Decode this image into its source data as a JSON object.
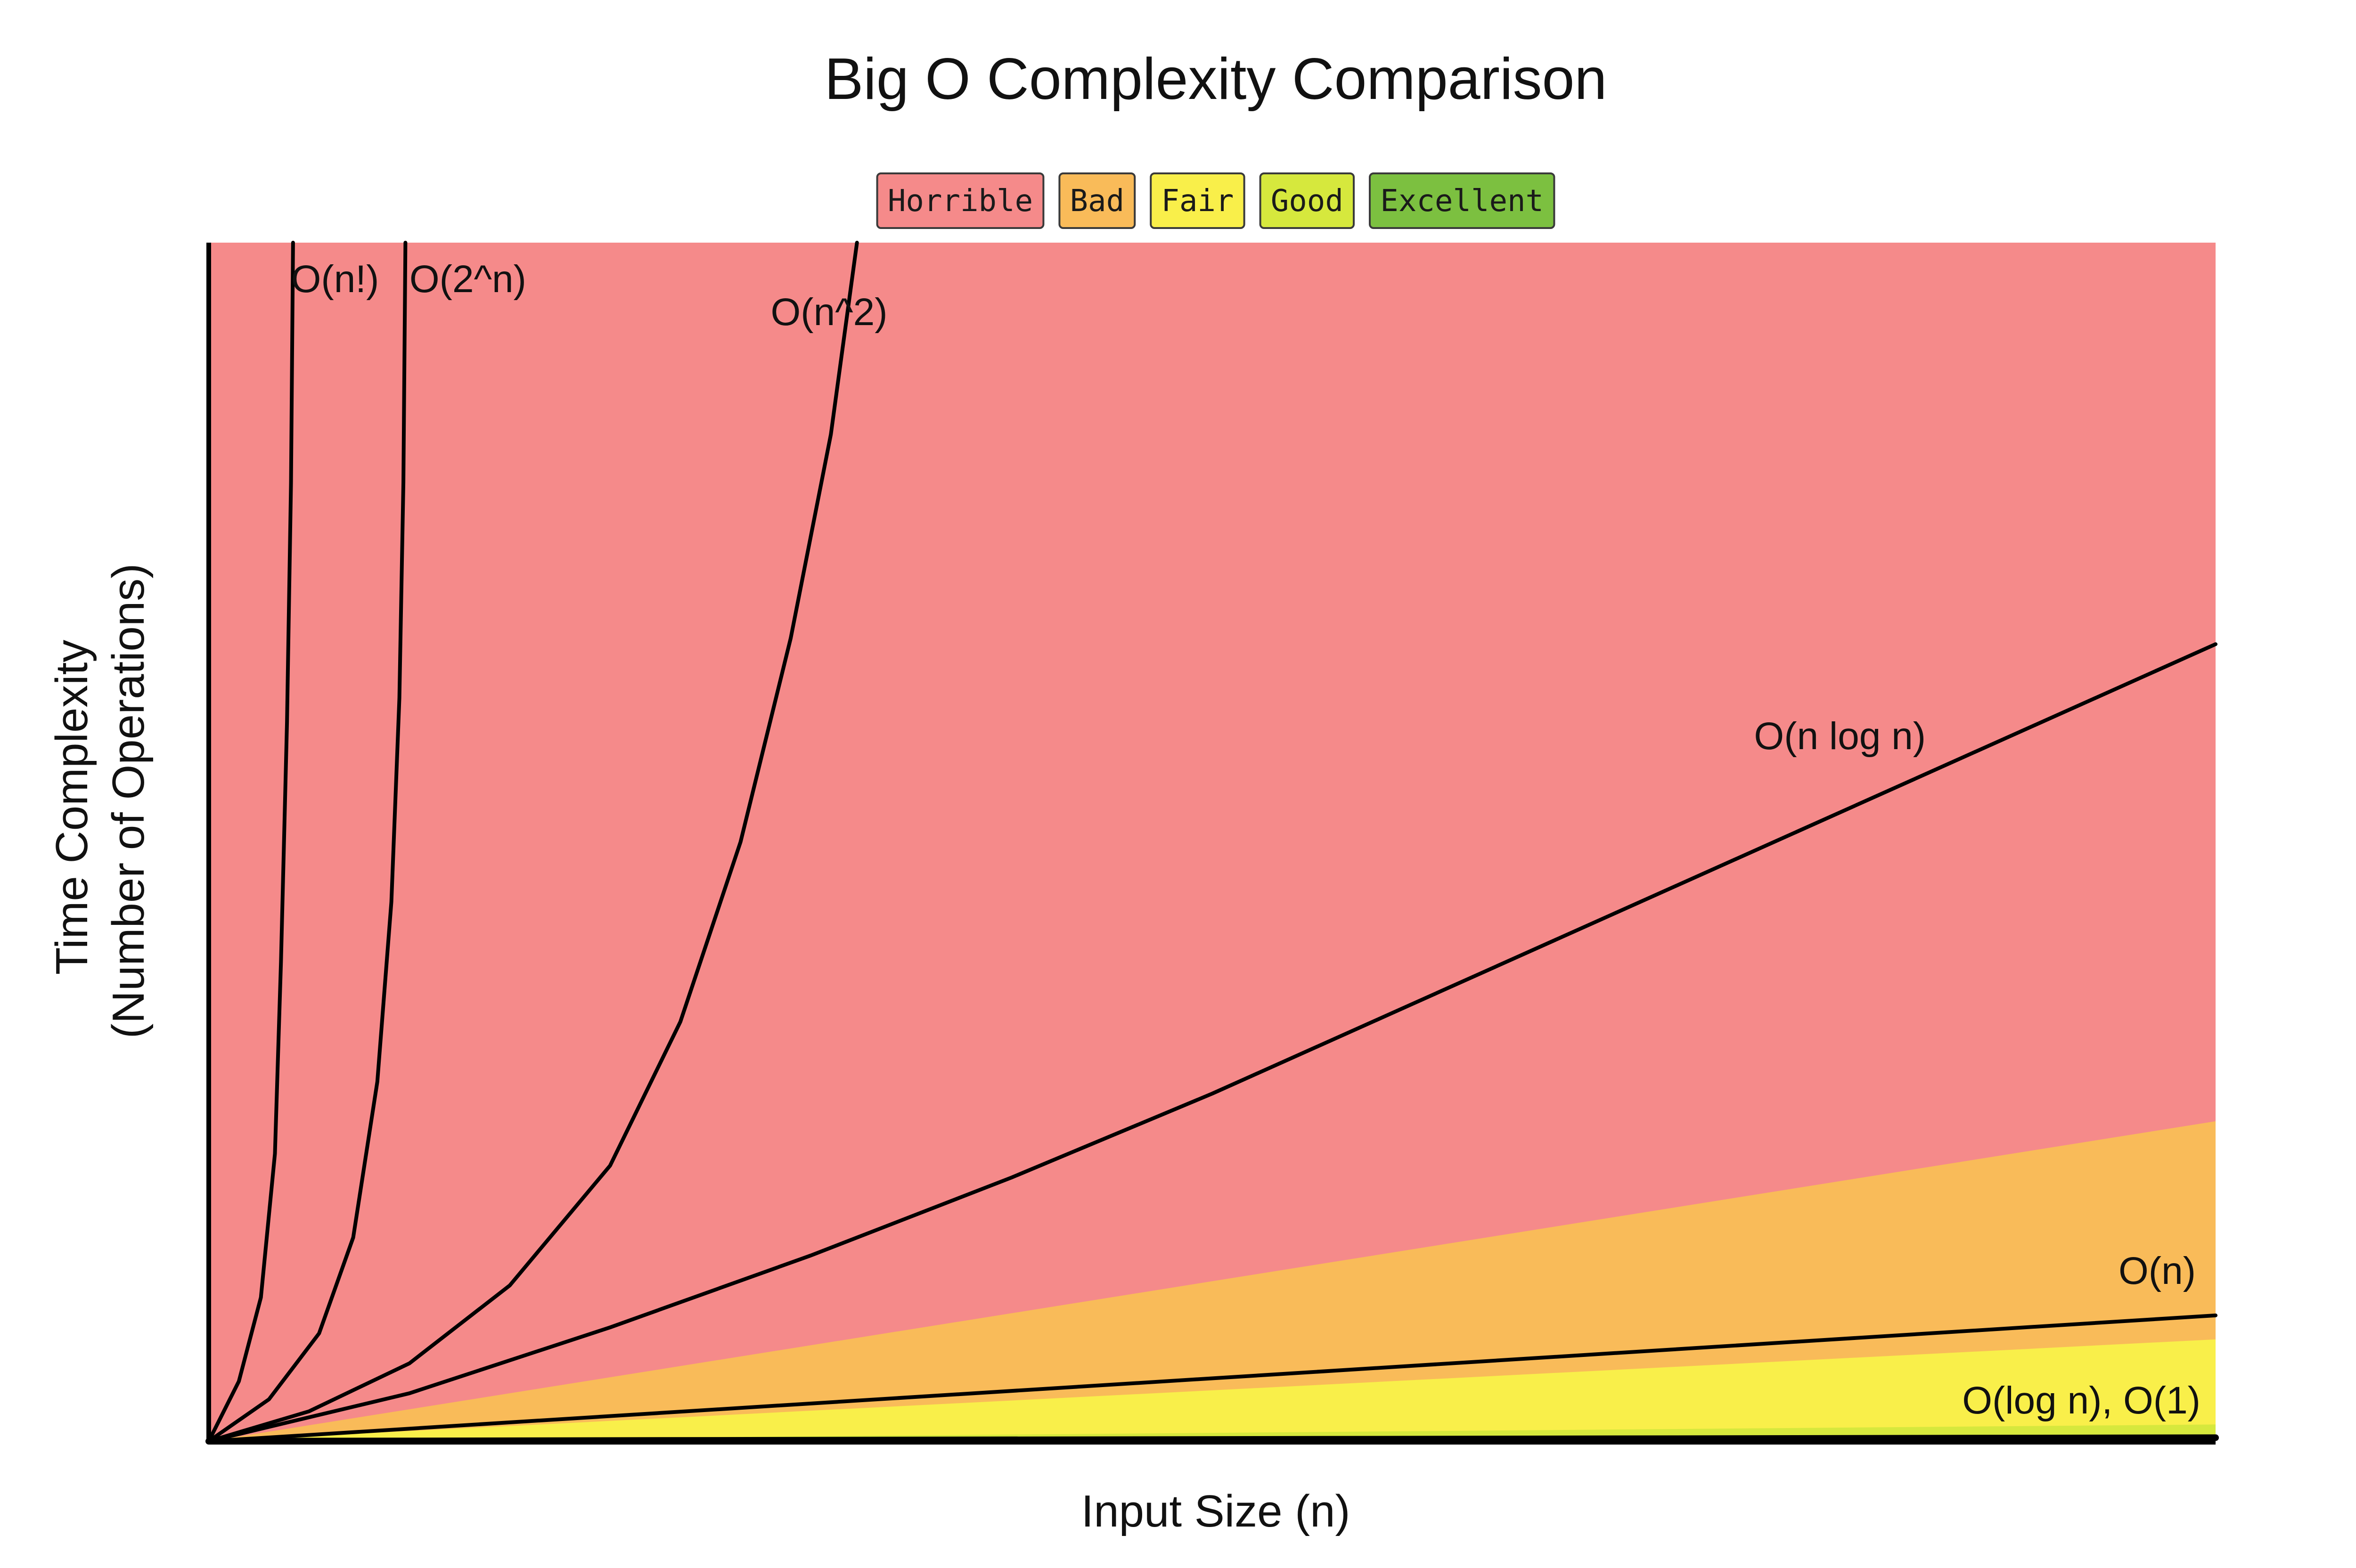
{
  "chart_data": {
    "type": "area",
    "title": "Big O Complexity Comparison",
    "xlabel": "Input Size (n)",
    "ylabel": [
      "Time Complexity",
      "(Number of Operations)"
    ],
    "xlim": [
      0,
      100
    ],
    "ylim": [
      0,
      100
    ],
    "grid": false,
    "legend_position": "top-center",
    "legend": [
      {
        "label": "Horrible",
        "color": "#f58a8a"
      },
      {
        "label": "Bad",
        "color": "#f9bb59"
      },
      {
        "label": "Fair",
        "color": "#f9ef4a"
      },
      {
        "label": "Good",
        "color": "#d6e83d"
      },
      {
        "label": "Excellent",
        "color": "#7cc040"
      }
    ],
    "regions": [
      {
        "name": "Horrible",
        "color": "#f58a8a",
        "boundary": [
          [
            0,
            0
          ],
          [
            100,
            100
          ]
        ]
      },
      {
        "name": "Bad",
        "color": "#f9bb59",
        "boundary": [
          [
            0,
            0
          ],
          [
            100,
            26.7
          ]
        ]
      },
      {
        "name": "Fair",
        "color": "#f9ef4a",
        "boundary": [
          [
            0,
            0
          ],
          [
            100,
            8.5
          ]
        ]
      },
      {
        "name": "Good",
        "color": "#d6e83d",
        "boundary": [
          [
            0,
            0
          ],
          [
            100,
            1.4
          ]
        ]
      },
      {
        "name": "Excellent",
        "color": "#7cc040",
        "boundary": [
          [
            0,
            0
          ],
          [
            100,
            0.4
          ]
        ]
      }
    ],
    "series": [
      {
        "name": "O(n!)",
        "points": [
          [
            0,
            0
          ],
          [
            1.5,
            5
          ],
          [
            2.6,
            12
          ],
          [
            3.3,
            24
          ],
          [
            3.6,
            40
          ],
          [
            3.9,
            60
          ],
          [
            4.1,
            80
          ],
          [
            4.2,
            100
          ]
        ]
      },
      {
        "name": "O(2^n)",
        "points": [
          [
            0,
            0
          ],
          [
            3,
            3.5
          ],
          [
            5.5,
            9
          ],
          [
            7.2,
            17
          ],
          [
            8.4,
            30
          ],
          [
            9.1,
            45
          ],
          [
            9.5,
            62
          ],
          [
            9.7,
            80
          ],
          [
            9.8,
            100
          ]
        ]
      },
      {
        "name": "O(n^2)",
        "points": [
          [
            0,
            0
          ],
          [
            5,
            2.5
          ],
          [
            10,
            6.5
          ],
          [
            15,
            13
          ],
          [
            20,
            23
          ],
          [
            23.5,
            35
          ],
          [
            26.5,
            50
          ],
          [
            29,
            67
          ],
          [
            31,
            84
          ],
          [
            32.3,
            100
          ]
        ]
      },
      {
        "name": "O(n log n)",
        "points": [
          [
            0,
            0
          ],
          [
            10,
            4
          ],
          [
            20,
            9.5
          ],
          [
            30,
            15.5
          ],
          [
            40,
            22
          ],
          [
            50,
            29
          ],
          [
            60,
            36.5
          ],
          [
            70,
            44
          ],
          [
            80,
            51.5
          ],
          [
            90,
            59
          ],
          [
            100,
            66.5
          ]
        ]
      },
      {
        "name": "O(n)",
        "points": [
          [
            0,
            0
          ],
          [
            100,
            10.5
          ]
        ]
      },
      {
        "name": "O(log n), O(1)",
        "points": [
          [
            0,
            0
          ],
          [
            100,
            0.3
          ]
        ]
      }
    ],
    "annotations": [
      "O(n!)",
      "O(2^n)",
      "O(n^2)",
      "O(n log n)",
      "O(n)",
      "O(log n), O(1)"
    ]
  }
}
